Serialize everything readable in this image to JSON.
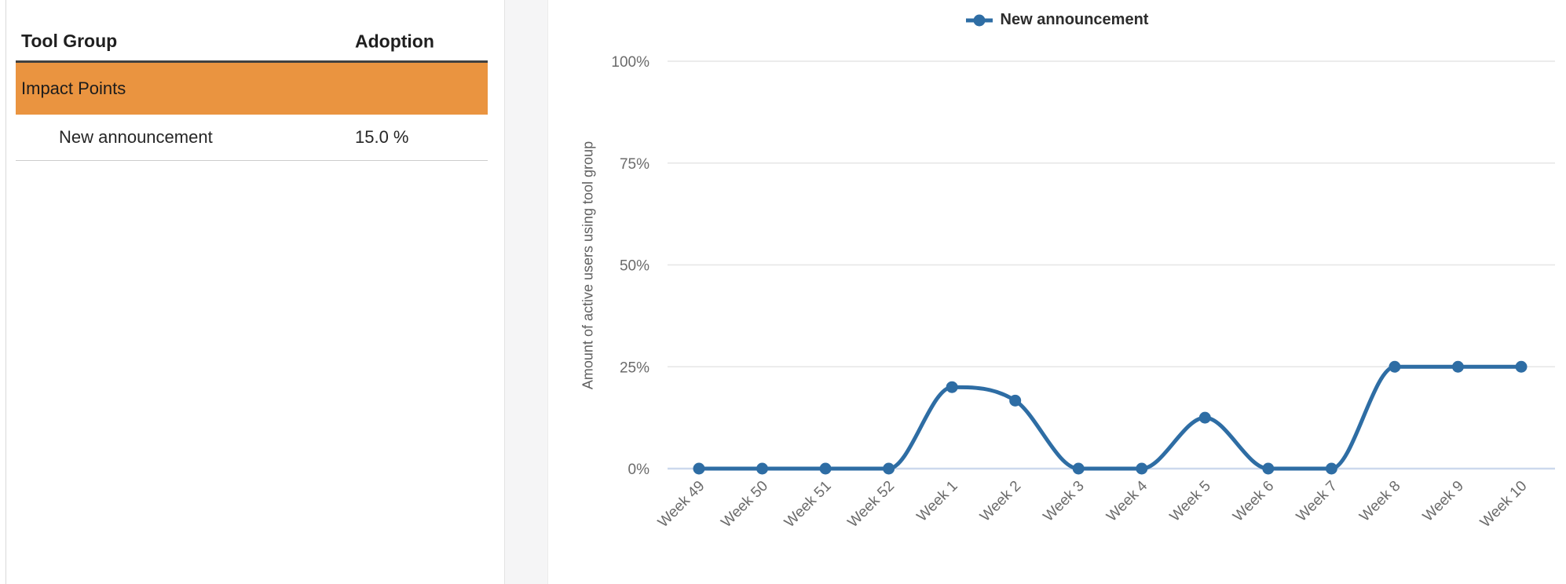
{
  "left_panel": {
    "table": {
      "headers": {
        "tool_group": "Tool Group",
        "adoption": "Adoption"
      },
      "group_row": {
        "label": "Impact Points"
      },
      "rows": [
        {
          "label": "New announcement",
          "adoption": "15.0 %"
        }
      ]
    }
  },
  "chart": {
    "legend": {
      "label": "New announcement"
    }
  },
  "chart_data": {
    "type": "line",
    "title": "",
    "xlabel": "",
    "ylabel": "Amount of active users using tool group",
    "categories": [
      "Week 49",
      "Week 50",
      "Week 51",
      "Week 52",
      "Week 1",
      "Week 2",
      "Week 3",
      "Week 4",
      "Week 5",
      "Week 6",
      "Week 7",
      "Week 8",
      "Week 9",
      "Week 10"
    ],
    "series": [
      {
        "name": "New announcement",
        "values": [
          0,
          0,
          0,
          0,
          20,
          16.7,
          0,
          0,
          12.5,
          0,
          0,
          25,
          25,
          25
        ]
      }
    ],
    "ylim": [
      0,
      100
    ],
    "y_ticks": [
      {
        "label": "100%",
        "value": 100
      },
      {
        "label": "75%",
        "value": 75
      },
      {
        "label": "50%",
        "value": 50
      },
      {
        "label": "25%",
        "value": 25
      },
      {
        "label": "0%",
        "value": 0
      }
    ],
    "grid": true,
    "legend_position": "top",
    "curve": "monotone"
  },
  "colors": {
    "accent_orange": "#EA9440",
    "series_blue": "#2E6DA4",
    "zero_line": "#CCD9ED",
    "gridline": "#E6E6E6",
    "tick_text": "#6B6B6B",
    "axis_title_text": "#606060",
    "header_border": "#414141",
    "row_border": "#CCCCCC"
  }
}
